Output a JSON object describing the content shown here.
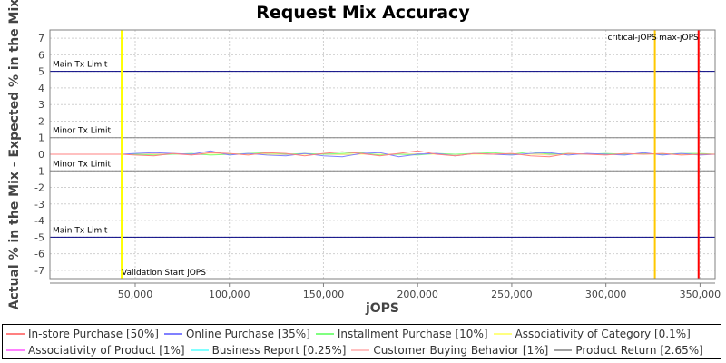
{
  "chart_data": {
    "type": "line",
    "title": "Request Mix Accuracy",
    "xlabel": "jOPS",
    "ylabel": "Actual % in the Mix - Expected % in the Mix",
    "xlim": [
      4700,
      358000
    ],
    "ylim": [
      -7.5,
      7.5
    ],
    "grid": true,
    "legend_position": "bottom",
    "x_ticks": [
      {
        "value": 50000,
        "label": "50,000"
      },
      {
        "value": 100000,
        "label": "100,000"
      },
      {
        "value": 150000,
        "label": "150,000"
      },
      {
        "value": 200000,
        "label": "200,000"
      },
      {
        "value": 250000,
        "label": "250,000"
      },
      {
        "value": 300000,
        "label": "300,000"
      },
      {
        "value": 350000,
        "label": "350,000"
      }
    ],
    "y_ticks": [
      7,
      6,
      5,
      4,
      3,
      2,
      1,
      0,
      -1,
      -2,
      -3,
      -4,
      -5,
      -6,
      -7
    ],
    "horizontal_markers": [
      {
        "value": 5,
        "label": "Main Tx Limit",
        "color": "#000080"
      },
      {
        "value": 1,
        "label": "Minor Tx Limit",
        "color": "#808080"
      },
      {
        "value": -1,
        "label": "Minor Tx Limit",
        "color": "#808080"
      },
      {
        "value": -5,
        "label": "Main Tx Limit",
        "color": "#000080"
      }
    ],
    "vertical_markers": [
      {
        "value": 42800,
        "label": "Validation Start jOPS",
        "color": "#ffff00"
      },
      {
        "value": 326000,
        "label": "critical-jOPS",
        "color": "#ffc800"
      },
      {
        "value": 349200,
        "label": "max-jOPS",
        "color": "#ff0000"
      }
    ],
    "x": [
      5000,
      42800,
      50000,
      60000,
      70000,
      80000,
      90000,
      100000,
      110000,
      120000,
      130000,
      140000,
      150000,
      160000,
      170000,
      180000,
      190000,
      200000,
      210000,
      220000,
      230000,
      240000,
      250000,
      260000,
      270000,
      280000,
      290000,
      300000,
      310000,
      320000,
      330000,
      340000,
      350000,
      358000
    ],
    "series": [
      {
        "name": "In-store Purchase [50%]",
        "color": "#ff8080",
        "values": [
          0,
          0,
          -0.05,
          -0.1,
          0.05,
          -0.05,
          0.1,
          0.05,
          -0.05,
          0.1,
          0.05,
          -0.1,
          0.05,
          0.15,
          0.05,
          -0.1,
          0.05,
          0.2,
          0.0,
          -0.1,
          0.05,
          0.0,
          0.05,
          -0.1,
          -0.15,
          0.05,
          0.0,
          -0.05,
          0.05,
          0.0,
          0.05,
          -0.05,
          0.0,
          0.0
        ]
      },
      {
        "name": "Online Purchase [35%]",
        "color": "#8080ff",
        "values": [
          0,
          0,
          0.05,
          0.1,
          0.05,
          0.0,
          0.2,
          -0.05,
          0.05,
          -0.05,
          -0.1,
          0.05,
          -0.1,
          -0.15,
          0.05,
          0.1,
          -0.15,
          0.0,
          0.05,
          -0.1,
          0.05,
          0.0,
          -0.05,
          0.05,
          0.1,
          -0.05,
          0.05,
          0.0,
          -0.05,
          0.1,
          -0.05,
          0.05,
          -0.05,
          0.0
        ]
      },
      {
        "name": "Installment Purchase [10%]",
        "color": "#80ff80",
        "values": [
          0,
          0,
          0.0,
          -0.05,
          0.0,
          0.05,
          -0.05,
          0.0,
          0.05,
          0.1,
          0.0,
          0.05,
          0.0,
          0.05,
          0.1,
          -0.05,
          0.0,
          -0.05,
          0.05,
          0.0,
          0.05,
          0.1,
          0.0,
          0.15,
          0.0,
          0.05,
          0.0,
          0.05,
          0.0,
          0.05,
          0.0,
          0.05,
          0.05,
          0.0
        ]
      },
      {
        "name": "Associativity of Category [0.1%]",
        "color": "#ffff80",
        "values": [
          0,
          0,
          0.0,
          0.0,
          0.0,
          0.0,
          0.0,
          0.0,
          0.0,
          0.0,
          0.0,
          0.0,
          0.0,
          0.0,
          0.0,
          0.0,
          0.0,
          0.0,
          0.0,
          0.0,
          0.0,
          0.0,
          0.0,
          0.0,
          0.0,
          0.0,
          0.0,
          0.0,
          0.0,
          0.0,
          0.0,
          0.0,
          0.0,
          0.0
        ]
      },
      {
        "name": "Associativity of Product [1%]",
        "color": "#ff80ff",
        "values": [
          0,
          0,
          0.0,
          0.02,
          0.0,
          -0.02,
          0.0,
          0.02,
          0.0,
          0.0,
          -0.02,
          0.0,
          0.02,
          0.0,
          0.0,
          -0.02,
          0.0,
          0.0,
          0.02,
          0.0,
          0.0,
          0.0,
          -0.02,
          0.0,
          0.0,
          0.02,
          0.0,
          0.0,
          0.0,
          0.0,
          0.0,
          0.0,
          0.0,
          0.0
        ]
      },
      {
        "name": "Business Report [0.25%]",
        "color": "#80ffff",
        "values": [
          0,
          0,
          0.0,
          0.0,
          0.0,
          0.0,
          0.0,
          0.0,
          0.0,
          0.0,
          0.0,
          0.0,
          0.0,
          0.0,
          0.0,
          0.0,
          0.0,
          0.0,
          0.0,
          0.0,
          0.0,
          0.0,
          0.0,
          0.0,
          0.0,
          0.0,
          0.0,
          0.0,
          0.0,
          0.0,
          0.0,
          0.0,
          0.0,
          0.0
        ]
      },
      {
        "name": "Customer Buying Behavior [1%]",
        "color": "#ffc0c0",
        "values": [
          0,
          0,
          -0.02,
          0.0,
          0.02,
          0.0,
          -0.02,
          0.0,
          0.02,
          0.0,
          0.0,
          0.02,
          0.0,
          -0.02,
          0.0,
          0.0,
          0.02,
          0.0,
          0.0,
          -0.02,
          0.0,
          0.02,
          0.0,
          0.0,
          -0.05,
          0.0,
          0.02,
          0.0,
          0.0,
          0.0,
          0.0,
          0.0,
          0.0,
          0.0
        ]
      },
      {
        "name": "Product Return [2.65%]",
        "color": "#a0a0a0",
        "values": [
          0,
          0,
          0.0,
          0.02,
          0.0,
          0.0,
          -0.02,
          0.0,
          0.0,
          0.02,
          0.0,
          0.0,
          0.0,
          -0.02,
          0.0,
          0.0,
          0.0,
          0.02,
          0.0,
          0.0,
          0.0,
          0.0,
          0.0,
          0.0,
          0.02,
          0.0,
          0.0,
          0.0,
          0.0,
          0.0,
          0.0,
          0.0,
          0.0,
          0.0
        ]
      }
    ]
  },
  "legend": {
    "row1": [
      {
        "label": "In-store Purchase [50%]",
        "color": "#ff8080"
      },
      {
        "label": "Online Purchase [35%]",
        "color": "#8080ff"
      },
      {
        "label": "Installment Purchase [10%]",
        "color": "#80ff80"
      },
      {
        "label": "Associativity of Category [0.1%]",
        "color": "#ffff80"
      }
    ],
    "row2": [
      {
        "label": "Associativity of Product [1%]",
        "color": "#ff80ff"
      },
      {
        "label": "Business Report [0.25%]",
        "color": "#80ffff"
      },
      {
        "label": "Customer Buying Behavior [1%]",
        "color": "#ffc0c0"
      },
      {
        "label": "Product Return [2.65%]",
        "color": "#a0a0a0"
      }
    ]
  }
}
